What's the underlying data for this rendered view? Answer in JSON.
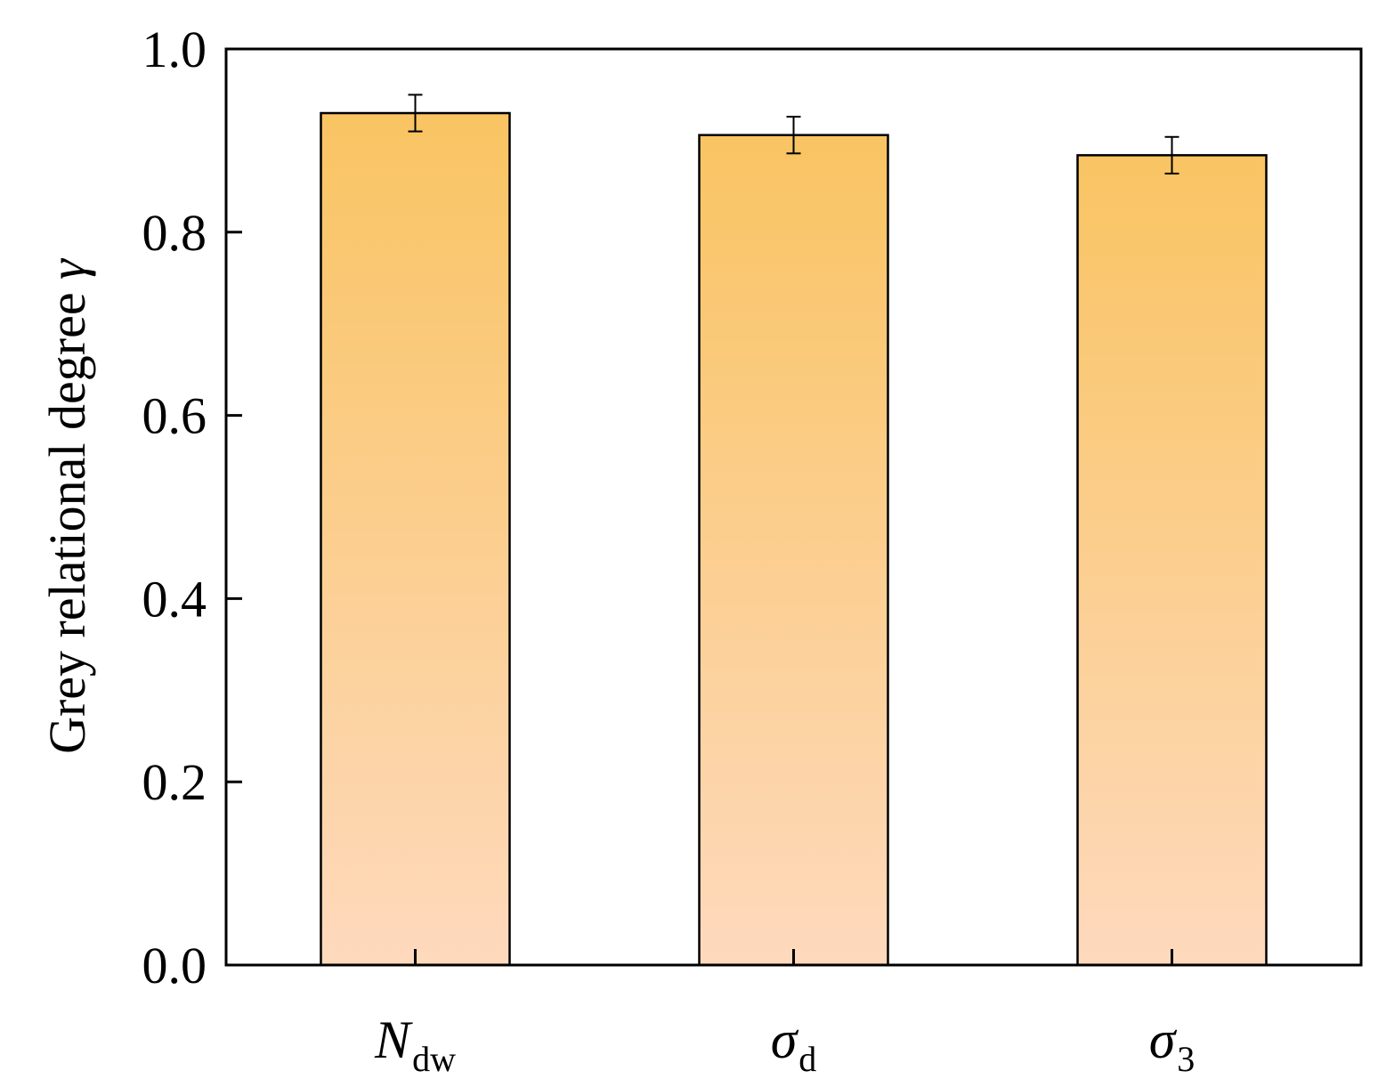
{
  "chart_data": {
    "type": "bar",
    "categories": [
      {
        "main": "N",
        "sub": "dw"
      },
      {
        "main": "σ",
        "sub": "d"
      },
      {
        "main": "σ",
        "sub": "3"
      }
    ],
    "values": [
      0.93,
      0.906,
      0.884
    ],
    "errors": [
      0.02,
      0.02,
      0.02
    ],
    "ylabel": {
      "text": "Grey relational degree ",
      "symbol": "γ"
    },
    "ylim": [
      0.0,
      1.0
    ],
    "yticks": [
      "0.0",
      "0.2",
      "0.4",
      "0.6",
      "0.8",
      "1.0"
    ],
    "grid": false,
    "bar_gradient": {
      "top": "#f9c462",
      "bottom": "#fed9bd"
    }
  }
}
